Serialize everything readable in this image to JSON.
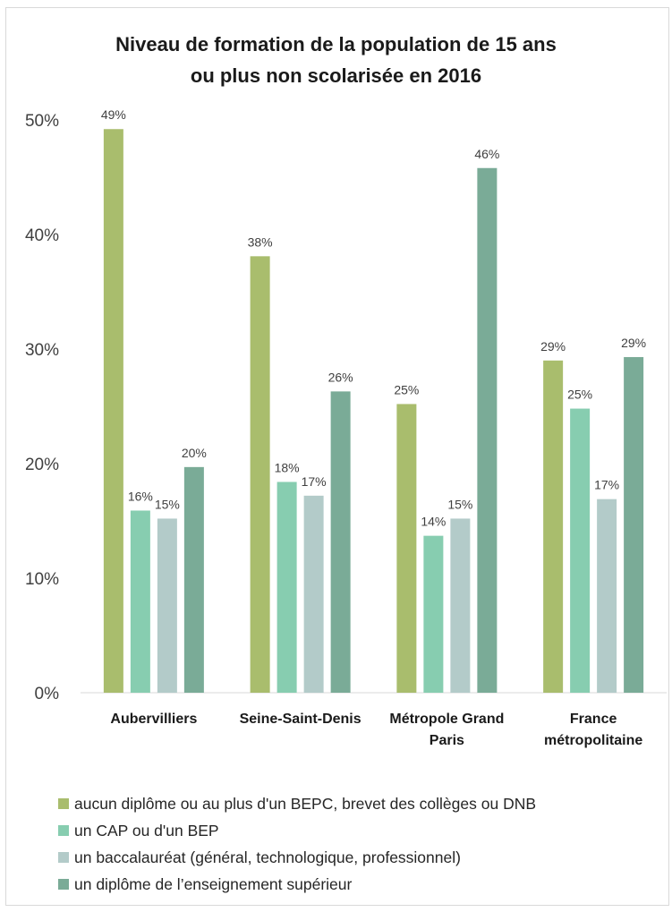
{
  "chart_data": {
    "type": "bar",
    "title_lines": [
      "Niveau de formation de la population de 15 ans",
      "ou plus non scolarisée en 2016"
    ],
    "categories": [
      [
        "Aubervilliers"
      ],
      [
        "Seine-Saint-Denis"
      ],
      [
        "Métropole Grand",
        "Paris"
      ],
      [
        "France",
        "métropolitaine"
      ]
    ],
    "ylim": [
      0,
      50
    ],
    "yticks": [
      0,
      10,
      20,
      30,
      40,
      50
    ],
    "ytick_labels": [
      "0%",
      "10%",
      "20%",
      "30%",
      "40%",
      "50%"
    ],
    "grid": false,
    "legend_position": "bottom",
    "series": [
      {
        "name": "aucun diplôme ou au plus d'un BEPC, brevet des collèges ou DNB",
        "color": "#a9bd6d",
        "values": [
          49.2,
          38.1,
          25.2,
          29.0
        ],
        "labels": [
          "49%",
          "38%",
          "25%",
          "29%"
        ]
      },
      {
        "name": "un CAP ou d'un BEP",
        "color": "#87cdb0",
        "values": [
          15.9,
          18.4,
          13.7,
          24.8
        ],
        "labels": [
          "16%",
          "18%",
          "14%",
          "25%"
        ]
      },
      {
        "name": "un baccalauréat (général, technologique, professionnel)",
        "color": "#b3cbc9",
        "values": [
          15.2,
          17.2,
          15.2,
          16.9
        ],
        "labels": [
          "15%",
          "17%",
          "15%",
          "17%"
        ]
      },
      {
        "name": "un diplôme de l’enseignement supérieur",
        "color": "#7aab97",
        "values": [
          19.7,
          26.3,
          45.8,
          29.3
        ],
        "labels": [
          "20%",
          "26%",
          "46%",
          "29%"
        ]
      }
    ]
  }
}
